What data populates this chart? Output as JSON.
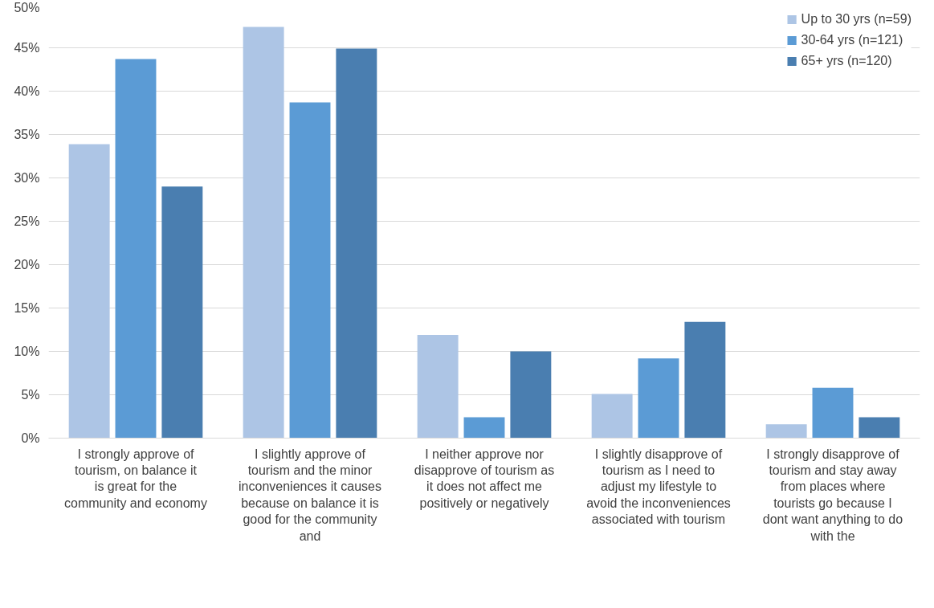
{
  "chart_data": {
    "type": "bar",
    "categories": [
      "I strongly approve of tourism, on balance it is great for the community and economy",
      "I slightly approve of tourism and the minor inconveniences it causes because on balance it is good for the community and",
      "I neither approve nor disapprove of tourism as it does not affect me positively or negatively",
      "I slightly disapprove of tourism as I need to adjust my lifestyle to avoid the inconveniences associated with tourism",
      "I strongly disapprove of tourism and stay away from places where tourists go because I dont want anything to do with the"
    ],
    "series": [
      {
        "name": "Up to 30 yrs (n=59)",
        "color": "#adc5e5",
        "values": [
          33.9,
          47.4,
          11.9,
          5.1,
          1.6
        ]
      },
      {
        "name": "30-64 yrs (n=121)",
        "color": "#5b9bd5",
        "values": [
          43.7,
          38.7,
          2.4,
          9.2,
          5.8
        ]
      },
      {
        "name": "65+ yrs (n=120)",
        "color": "#4a7eb0",
        "values": [
          29.0,
          44.9,
          10.0,
          13.4,
          2.4
        ]
      }
    ],
    "ylim": [
      0,
      50
    ],
    "yticks": [
      {
        "value": 0,
        "label": "0%"
      },
      {
        "value": 5,
        "label": "5%"
      },
      {
        "value": 10,
        "label": "10%"
      },
      {
        "value": 15,
        "label": "15%"
      },
      {
        "value": 20,
        "label": "20%"
      },
      {
        "value": 25,
        "label": "25%"
      },
      {
        "value": 30,
        "label": "30%"
      },
      {
        "value": 35,
        "label": "35%"
      },
      {
        "value": 40,
        "label": "40%"
      },
      {
        "value": 45,
        "label": "45%"
      },
      {
        "value": 50,
        "label": "50%"
      }
    ],
    "grid": "y",
    "legend": "top right"
  }
}
